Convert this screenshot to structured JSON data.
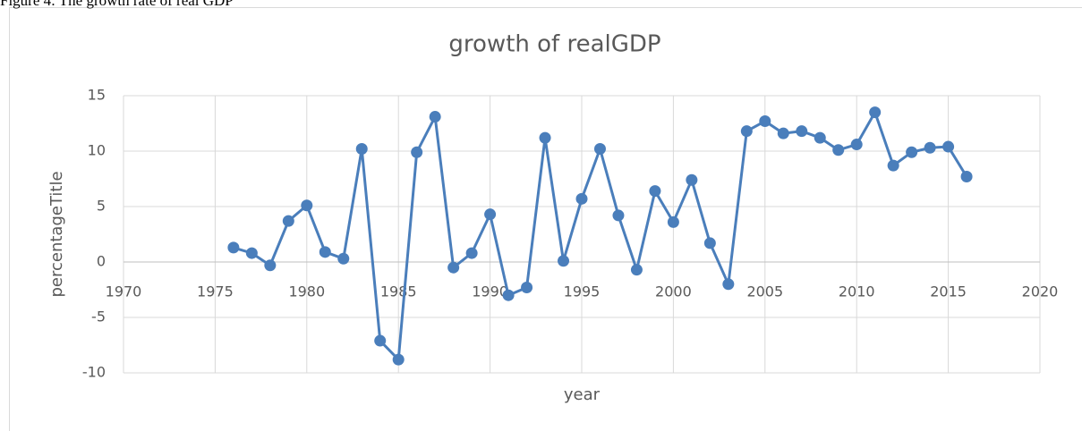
{
  "caption": "Figure 4: The growth rate of real GDP",
  "chart_data": {
    "type": "line",
    "title": "growth of realGDP",
    "x_label": "year",
    "y_label": "percentageTitle",
    "series": [
      {
        "name": "growth of realGDP",
        "color": "#4a7ebb",
        "x": [
          1976,
          1977,
          1978,
          1979,
          1980,
          1981,
          1982,
          1983,
          1984,
          1985,
          1986,
          1987,
          1988,
          1989,
          1990,
          1991,
          1992,
          1993,
          1994,
          1995,
          1996,
          1997,
          1998,
          1999,
          2000,
          2001,
          2002,
          2003,
          2004,
          2005,
          2006,
          2007,
          2008,
          2009,
          2010,
          2011,
          2012,
          2013,
          2014,
          2015,
          2016
        ],
        "values": [
          1.3,
          0.8,
          -0.3,
          3.7,
          5.1,
          0.9,
          0.3,
          10.2,
          -7.1,
          -8.8,
          9.9,
          13.1,
          -0.5,
          0.8,
          4.3,
          -3.0,
          -2.3,
          11.2,
          0.1,
          5.7,
          10.2,
          4.2,
          -0.7,
          6.4,
          3.6,
          7.4,
          1.7,
          -2.0,
          11.8,
          12.7,
          11.6,
          11.8,
          11.2,
          10.1,
          10.6,
          13.5,
          8.7,
          9.9,
          10.3,
          10.4,
          7.7
        ]
      }
    ],
    "xlim": [
      1970,
      2020
    ],
    "xticks": [
      1970,
      1975,
      1980,
      1985,
      1990,
      1995,
      2000,
      2005,
      2010,
      2015,
      2020
    ],
    "ylim": [
      -10,
      15
    ],
    "yticks": [
      -10,
      -5,
      0,
      5,
      10,
      15
    ],
    "grid": true
  }
}
